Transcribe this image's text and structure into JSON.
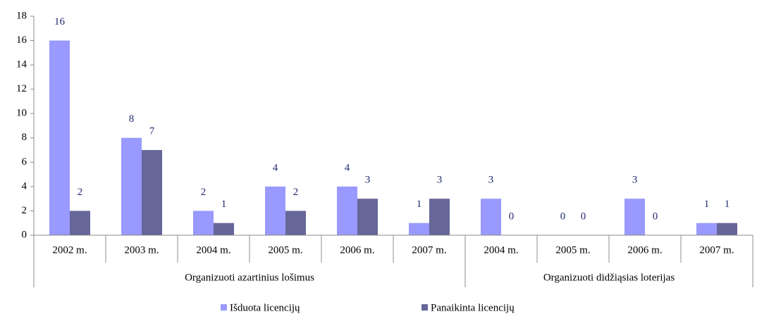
{
  "chart_data": {
    "type": "bar",
    "groups": [
      {
        "label": "Organizuoti azartinius lošimus",
        "categories": [
          "2002 m.",
          "2003 m.",
          "2004 m.",
          "2005 m.",
          "2006 m.",
          "2007 m."
        ]
      },
      {
        "label": "Organizuoti didžiąsias loterijas",
        "categories": [
          "2004 m.",
          "2005 m.",
          "2006 m.",
          "2007 m."
        ]
      }
    ],
    "series": [
      {
        "name": "Išduota licencijų",
        "color": "#9999ff",
        "values": [
          16,
          8,
          2,
          4,
          4,
          1,
          3,
          0,
          3,
          1
        ]
      },
      {
        "name": "Panaikinta licencijų",
        "color": "#666699",
        "values": [
          2,
          7,
          1,
          2,
          3,
          3,
          0,
          0,
          0,
          1
        ]
      }
    ],
    "ylim": [
      0,
      18
    ],
    "yticks": [
      0,
      2,
      4,
      6,
      8,
      10,
      12,
      14,
      16,
      18
    ],
    "legend": "bottom"
  }
}
